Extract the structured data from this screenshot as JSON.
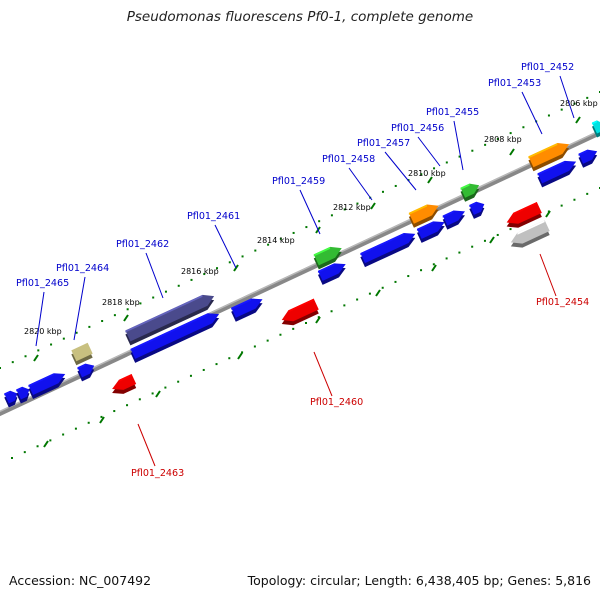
{
  "title": "Pseudomonas fluorescens Pf0-1, complete genome",
  "footer": {
    "accession": "Accession: NC_007492",
    "stats": "Topology: circular; Length: 6,438,405 bp; Genes: 5,816"
  },
  "ticks": [
    "2806 kbp",
    "2808 kbp",
    "2810 kbp",
    "2812 kbp",
    "2814 kbp",
    "2816 kbp",
    "2818 kbp",
    "2820 kbp"
  ],
  "genes": [
    {
      "label": "Pfl01_2452",
      "color": "#00e0e0",
      "strand": "forward"
    },
    {
      "label": "Pfl01_2453",
      "color": "#ff8c00",
      "strand": "forward"
    },
    {
      "label": "Pfl01_2454",
      "color": "#c0c0c0",
      "strand": "reverse"
    },
    {
      "label": "Pfl01_2455",
      "color": "#33bb33",
      "strand": "forward"
    },
    {
      "label": "Pfl01_2456",
      "color": "#ff8c00",
      "strand": "forward"
    },
    {
      "label": "Pfl01_2457",
      "color": "#0000ee",
      "strand": "forward"
    },
    {
      "label": "Pfl01_2458",
      "color": "#0000ee",
      "strand": "forward"
    },
    {
      "label": "Pfl01_2459",
      "color": "#33bb33",
      "strand": "forward"
    },
    {
      "label": "Pfl01_2460",
      "color": "#ee0000",
      "strand": "reverse"
    },
    {
      "label": "Pfl01_2461",
      "color": "#0000ee",
      "strand": "forward"
    },
    {
      "label": "Pfl01_2462",
      "color": "#4a4a8c",
      "strand": "forward"
    },
    {
      "label": "Pfl01_2463",
      "color": "#ee0000",
      "strand": "reverse"
    },
    {
      "label": "Pfl01_2464",
      "color": "#c8c080",
      "strand": "forward"
    },
    {
      "label": "Pfl01_2465",
      "color": "#0000ee",
      "strand": "forward"
    }
  ],
  "colors": {
    "backbone": "#888888",
    "tick": "#007700",
    "forward_label": "#0000cc",
    "reverse_label": "#cc0000"
  }
}
